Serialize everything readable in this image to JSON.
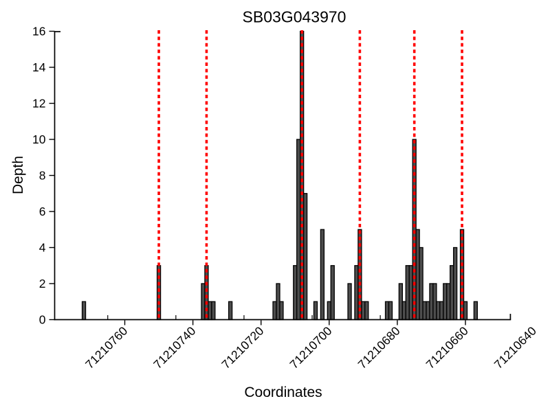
{
  "chart_data": {
    "type": "bar",
    "title": "SB03G043970",
    "xlabel": "Coordinates",
    "ylabel": "Depth",
    "x_ticks": [
      71210760,
      71210740,
      71210720,
      71210700,
      71210680,
      71210660,
      71210640
    ],
    "x_minor_ticks": [
      71210765,
      71210745,
      71210725,
      71210705,
      71210685,
      71210665
    ],
    "y_ticks": [
      0,
      2,
      4,
      6,
      8,
      10,
      12,
      14,
      16
    ],
    "ylim": [
      0,
      16
    ],
    "x_axis_reversed": true,
    "grid": false,
    "bar_fill": "#4d4d4d",
    "bar_edge": "#000000",
    "red_line_color": "#ff0000",
    "axis_color": "#000000",
    "red_dashed_lines": [
      71210750,
      71210736,
      71210708,
      71210691,
      71210675,
      71210661
    ],
    "bars": [
      {
        "coord": 71210772,
        "depth": 1
      },
      {
        "coord": 71210750,
        "depth": 3
      },
      {
        "coord": 71210737,
        "depth": 2
      },
      {
        "coord": 71210736,
        "depth": 3
      },
      {
        "coord": 71210735,
        "depth": 1
      },
      {
        "coord": 71210734,
        "depth": 1
      },
      {
        "coord": 71210729,
        "depth": 1
      },
      {
        "coord": 71210716,
        "depth": 1
      },
      {
        "coord": 71210715,
        "depth": 2
      },
      {
        "coord": 71210714,
        "depth": 1
      },
      {
        "coord": 71210710,
        "depth": 3
      },
      {
        "coord": 71210709,
        "depth": 10
      },
      {
        "coord": 71210708,
        "depth": 16
      },
      {
        "coord": 71210707,
        "depth": 7
      },
      {
        "coord": 71210704,
        "depth": 1
      },
      {
        "coord": 71210702,
        "depth": 5
      },
      {
        "coord": 71210700,
        "depth": 1
      },
      {
        "coord": 71210699,
        "depth": 3
      },
      {
        "coord": 71210694,
        "depth": 2
      },
      {
        "coord": 71210692,
        "depth": 3
      },
      {
        "coord": 71210691,
        "depth": 5
      },
      {
        "coord": 71210690,
        "depth": 1
      },
      {
        "coord": 71210689,
        "depth": 1
      },
      {
        "coord": 71210683,
        "depth": 1
      },
      {
        "coord": 71210682,
        "depth": 1
      },
      {
        "coord": 71210679,
        "depth": 2
      },
      {
        "coord": 71210678,
        "depth": 1
      },
      {
        "coord": 71210677,
        "depth": 3
      },
      {
        "coord": 71210676,
        "depth": 3
      },
      {
        "coord": 71210675,
        "depth": 10
      },
      {
        "coord": 71210674,
        "depth": 5
      },
      {
        "coord": 71210673,
        "depth": 4
      },
      {
        "coord": 71210672,
        "depth": 1
      },
      {
        "coord": 71210671,
        "depth": 1
      },
      {
        "coord": 71210670,
        "depth": 2
      },
      {
        "coord": 71210669,
        "depth": 2
      },
      {
        "coord": 71210668,
        "depth": 1
      },
      {
        "coord": 71210667,
        "depth": 1
      },
      {
        "coord": 71210666,
        "depth": 2
      },
      {
        "coord": 71210665,
        "depth": 2
      },
      {
        "coord": 71210664,
        "depth": 3
      },
      {
        "coord": 71210663,
        "depth": 4
      },
      {
        "coord": 71210661,
        "depth": 5
      },
      {
        "coord": 71210660,
        "depth": 1
      },
      {
        "coord": 71210657,
        "depth": 1
      }
    ]
  }
}
